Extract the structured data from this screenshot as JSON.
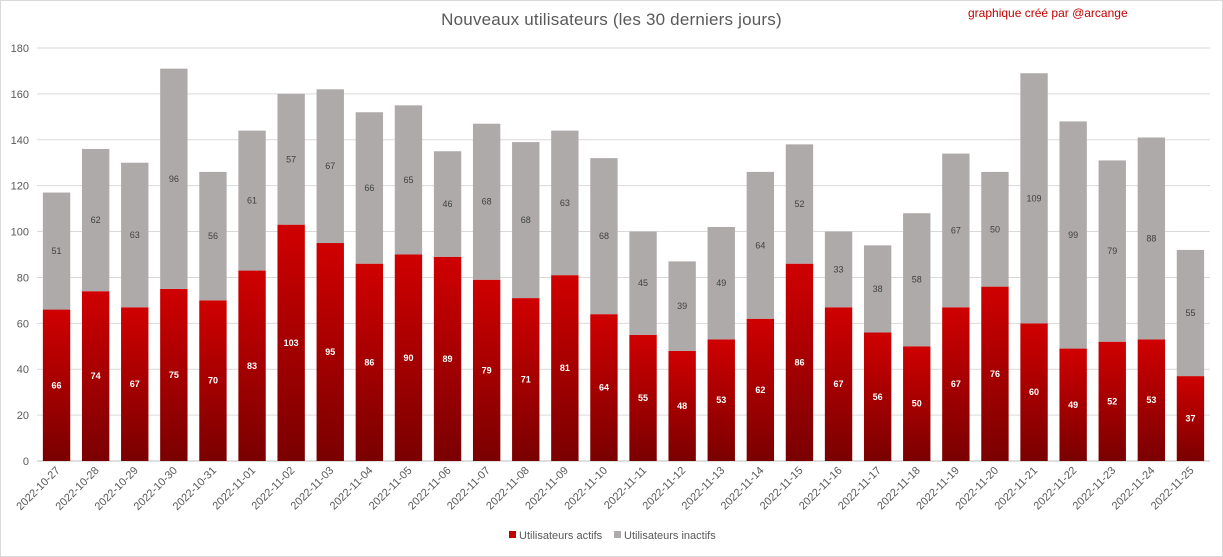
{
  "chart_data": {
    "type": "bar",
    "stacked": true,
    "title": "Nouveaux utilisateurs  (les 30 derniers  jours)",
    "credit": "graphique créé par @arcange",
    "ylim": [
      0,
      180
    ],
    "y_ticks": [
      0,
      20,
      40,
      60,
      80,
      100,
      120,
      140,
      160,
      180
    ],
    "grid": true,
    "legend_position": "bottom",
    "categories": [
      "2022-10-27",
      "2022-10-28",
      "2022-10-29",
      "2022-10-30",
      "2022-10-31",
      "2022-11-01",
      "2022-11-02",
      "2022-11-03",
      "2022-11-04",
      "2022-11-05",
      "2022-11-06",
      "2022-11-07",
      "2022-11-08",
      "2022-11-09",
      "2022-11-10",
      "2022-11-11",
      "2022-11-12",
      "2022-11-13",
      "2022-11-14",
      "2022-11-15",
      "2022-11-16",
      "2022-11-17",
      "2022-11-18",
      "2022-11-19",
      "2022-11-20",
      "2022-11-21",
      "2022-11-22",
      "2022-11-23",
      "2022-11-24",
      "2022-11-25"
    ],
    "series": [
      {
        "name": "Utilisateurs actifs",
        "color": "#c00000",
        "values": [
          66,
          74,
          67,
          75,
          70,
          83,
          103,
          95,
          86,
          90,
          89,
          79,
          71,
          81,
          64,
          55,
          48,
          53,
          62,
          86,
          67,
          56,
          50,
          67,
          76,
          60,
          49,
          52,
          53,
          37
        ]
      },
      {
        "name": "Utilisateurs inactifs",
        "color": "#aeaaaa",
        "values": [
          51,
          62,
          63,
          96,
          56,
          61,
          57,
          67,
          66,
          65,
          46,
          68,
          68,
          63,
          68,
          45,
          39,
          49,
          64,
          52,
          33,
          38,
          58,
          67,
          50,
          109,
          99,
          79,
          88,
          55
        ]
      }
    ]
  }
}
